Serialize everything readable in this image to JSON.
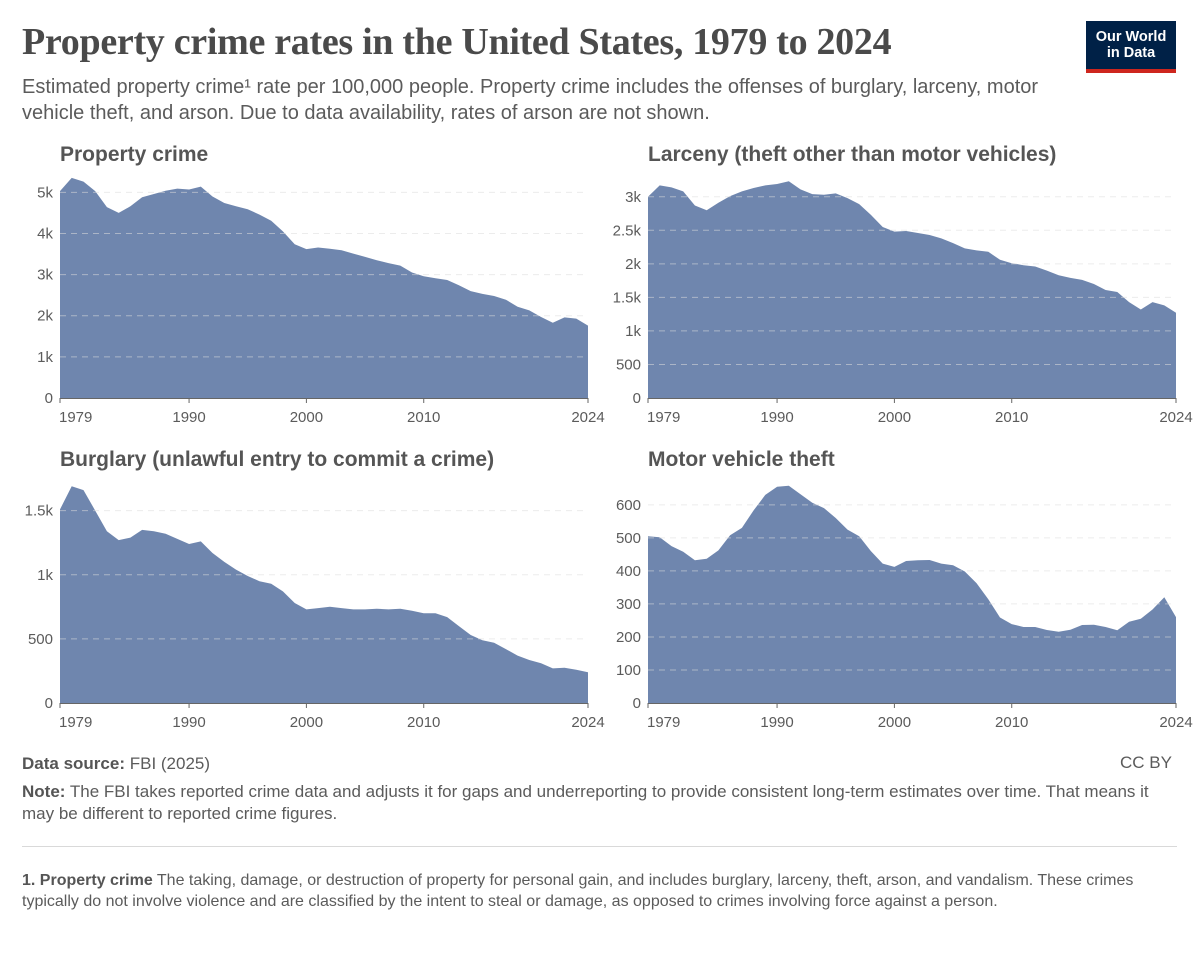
{
  "header": {
    "title": "Property crime rates in the United States, 1979 to 2024",
    "subtitle": "Estimated property crime¹ rate per 100,000 people. Property crime includes the offenses of burglary, larceny, motor vehicle theft, and arson. Due to data availability, rates of arson are not shown."
  },
  "logo": {
    "line1": "Our World",
    "line2": "in Data"
  },
  "colors": {
    "area": "#6f86ae",
    "grid": "#dddddd",
    "axis": "#666666",
    "text": "#5b5b5b"
  },
  "chart_data": [
    {
      "type": "area",
      "title": "Property crime",
      "xlim": [
        1979,
        2024
      ],
      "ylim": [
        0,
        5300
      ],
      "yticks": [
        0,
        1000,
        2000,
        3000,
        4000,
        5000
      ],
      "ytick_labels": [
        "0",
        "1k",
        "2k",
        "3k",
        "4k",
        "5k"
      ],
      "xticks": [
        1979,
        1990,
        2000,
        2010,
        2024
      ],
      "xtick_labels": [
        "1979",
        "1990",
        "2000",
        "2010",
        "2024"
      ],
      "x": [
        1979,
        1980,
        1981,
        1982,
        1983,
        1984,
        1985,
        1986,
        1987,
        1988,
        1989,
        1990,
        1991,
        1992,
        1993,
        1994,
        1995,
        1996,
        1997,
        1998,
        1999,
        2000,
        2001,
        2002,
        2003,
        2004,
        2005,
        2006,
        2007,
        2008,
        2009,
        2010,
        2011,
        2012,
        2013,
        2014,
        2015,
        2016,
        2017,
        2018,
        2019,
        2020,
        2021,
        2022,
        2023,
        2024
      ],
      "values": [
        5030,
        5350,
        5260,
        5030,
        4640,
        4500,
        4660,
        4880,
        4960,
        5040,
        5090,
        5070,
        5140,
        4900,
        4740,
        4660,
        4590,
        4460,
        4310,
        4050,
        3740,
        3620,
        3660,
        3630,
        3590,
        3510,
        3430,
        3350,
        3280,
        3220,
        3050,
        2960,
        2910,
        2870,
        2740,
        2600,
        2530,
        2480,
        2390,
        2220,
        2130,
        1970,
        1830,
        1960,
        1930,
        1760
      ]
    },
    {
      "type": "area",
      "title": "Larceny (theft other than motor vehicles)",
      "xlim": [
        1979,
        2024
      ],
      "ylim": [
        0,
        3250
      ],
      "yticks": [
        0,
        500,
        1000,
        1500,
        2000,
        2500,
        3000
      ],
      "ytick_labels": [
        "0",
        "500",
        "1k",
        "1.5k",
        "2k",
        "2.5k",
        "3k"
      ],
      "xticks": [
        1979,
        1990,
        2000,
        2010,
        2024
      ],
      "xtick_labels": [
        "1979",
        "1990",
        "2000",
        "2010",
        "2024"
      ],
      "x": [
        1979,
        1980,
        1981,
        1982,
        1983,
        1984,
        1985,
        1986,
        1987,
        1988,
        1989,
        1990,
        1991,
        1992,
        1993,
        1994,
        1995,
        1996,
        1997,
        1998,
        1999,
        2000,
        2001,
        2002,
        2003,
        2004,
        2005,
        2006,
        2007,
        2008,
        2009,
        2010,
        2011,
        2012,
        2013,
        2014,
        2015,
        2016,
        2017,
        2018,
        2019,
        2020,
        2021,
        2022,
        2023,
        2024
      ],
      "values": [
        3000,
        3170,
        3140,
        3080,
        2870,
        2800,
        2910,
        3010,
        3080,
        3130,
        3170,
        3190,
        3230,
        3110,
        3040,
        3030,
        3050,
        2980,
        2890,
        2730,
        2550,
        2480,
        2490,
        2460,
        2430,
        2380,
        2310,
        2230,
        2200,
        2180,
        2060,
        2010,
        1980,
        1960,
        1900,
        1830,
        1790,
        1760,
        1700,
        1610,
        1580,
        1430,
        1320,
        1430,
        1380,
        1270
      ]
    },
    {
      "type": "area",
      "title": "Burglary (unlawful entry to commit a crime)",
      "xlim": [
        1979,
        2024
      ],
      "ylim": [
        0,
        1700
      ],
      "yticks": [
        0,
        500,
        1000,
        1500
      ],
      "ytick_labels": [
        "0",
        "500",
        "1k",
        "1.5k"
      ],
      "xticks": [
        1979,
        1990,
        2000,
        2010,
        2024
      ],
      "xtick_labels": [
        "1979",
        "1990",
        "2000",
        "2010",
        "2024"
      ],
      "x": [
        1979,
        1980,
        1981,
        1982,
        1983,
        1984,
        1985,
        1986,
        1987,
        1988,
        1989,
        1990,
        1991,
        1992,
        1993,
        1994,
        1995,
        1996,
        1997,
        1998,
        1999,
        2000,
        2001,
        2002,
        2003,
        2004,
        2005,
        2006,
        2007,
        2008,
        2009,
        2010,
        2011,
        2012,
        2013,
        2014,
        2015,
        2016,
        2017,
        2018,
        2019,
        2020,
        2021,
        2022,
        2023,
        2024
      ],
      "values": [
        1510,
        1690,
        1660,
        1500,
        1340,
        1270,
        1290,
        1350,
        1340,
        1320,
        1280,
        1240,
        1260,
        1170,
        1100,
        1040,
        990,
        950,
        930,
        870,
        780,
        730,
        740,
        750,
        740,
        730,
        730,
        735,
        730,
        735,
        720,
        700,
        700,
        670,
        600,
        530,
        490,
        470,
        420,
        370,
        335,
        310,
        270,
        275,
        260,
        240
      ]
    },
    {
      "type": "area",
      "title": "Motor vehicle theft",
      "xlim": [
        1979,
        2024
      ],
      "ylim": [
        0,
        660
      ],
      "yticks": [
        0,
        100,
        200,
        300,
        400,
        500,
        600
      ],
      "ytick_labels": [
        "0",
        "100",
        "200",
        "300",
        "400",
        "500",
        "600"
      ],
      "xticks": [
        1979,
        1990,
        2000,
        2010,
        2024
      ],
      "xtick_labels": [
        "1979",
        "1990",
        "2000",
        "2010",
        "2024"
      ],
      "x": [
        1979,
        1980,
        1981,
        1982,
        1983,
        1984,
        1985,
        1986,
        1987,
        1988,
        1989,
        1990,
        1991,
        1992,
        1993,
        1994,
        1995,
        1996,
        1997,
        1998,
        1999,
        2000,
        2001,
        2002,
        2003,
        2004,
        2005,
        2006,
        2007,
        2008,
        2009,
        2010,
        2011,
        2012,
        2013,
        2014,
        2015,
        2016,
        2017,
        2018,
        2019,
        2020,
        2021,
        2022,
        2023,
        2024
      ],
      "values": [
        505,
        502,
        475,
        458,
        432,
        437,
        462,
        508,
        530,
        583,
        630,
        655,
        658,
        632,
        606,
        590,
        560,
        525,
        505,
        460,
        422,
        412,
        430,
        432,
        433,
        422,
        417,
        398,
        363,
        314,
        259,
        239,
        230,
        230,
        221,
        216,
        222,
        236,
        237,
        230,
        220,
        246,
        255,
        283,
        320,
        260
      ]
    }
  ],
  "footer": {
    "source_label": "Data source:",
    "source_value": "FBI (2025)",
    "license": "CC BY",
    "note_label": "Note:",
    "note_text": "The FBI takes reported crime data and adjusts it for gaps and underreporting to provide consistent long-term estimates over time. That means it may be different to reported crime figures.",
    "footnote_label": "1. Property crime",
    "footnote_text": "The taking, damage, or destruction of property for personal gain, and includes burglary, larceny, theft, arson, and vandalism. These crimes typically do not involve violence and are classified by the intent to steal or damage, as opposed to crimes involving force against a person."
  }
}
